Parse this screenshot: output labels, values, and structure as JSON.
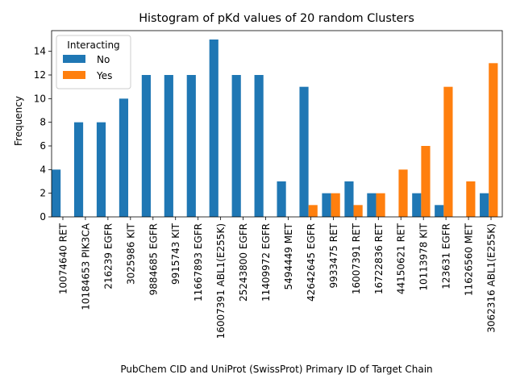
{
  "chart_data": {
    "type": "bar",
    "title": "Histogram of pKd values of 20 random Clusters",
    "xlabel": "PubChem CID and UniProt (SwissProt) Primary ID of Target Chain",
    "ylabel": "Frequency",
    "ylim": [
      0,
      15.75
    ],
    "yticks": [
      0,
      2,
      4,
      6,
      8,
      10,
      12,
      14
    ],
    "grid": false,
    "legend": {
      "title": "Interacting",
      "placement": "top-left"
    },
    "categories": [
      "10074640 RET",
      "10184653 PIK3CA",
      "216239 EGFR",
      "3025986 KIT",
      "9884685 EGFR",
      "9915743 KIT",
      "11667893 EGFR",
      "16007391 ABL1(E255K)",
      "25243800 EGFR",
      "11409972 EGFR",
      "5494449 MET",
      "42642645 EGFR",
      "9933475 RET",
      "16007391 RET",
      "16722836 RET",
      "44150621 RET",
      "10113978 KIT",
      "123631 EGFR",
      "11626560 MET",
      "3062316 ABL1(E255K)"
    ],
    "series": [
      {
        "name": "No",
        "color": "#1f77b4",
        "values": [
          4,
          8,
          8,
          10,
          12,
          12,
          12,
          15,
          12,
          12,
          3,
          11,
          2,
          3,
          2,
          0,
          2,
          1,
          0,
          2
        ]
      },
      {
        "name": "Yes",
        "color": "#ff7f0e",
        "values": [
          0,
          0,
          0,
          0,
          0,
          0,
          0,
          0,
          0,
          0,
          0,
          1,
          2,
          1,
          2,
          4,
          6,
          11,
          3,
          13
        ]
      }
    ]
  }
}
